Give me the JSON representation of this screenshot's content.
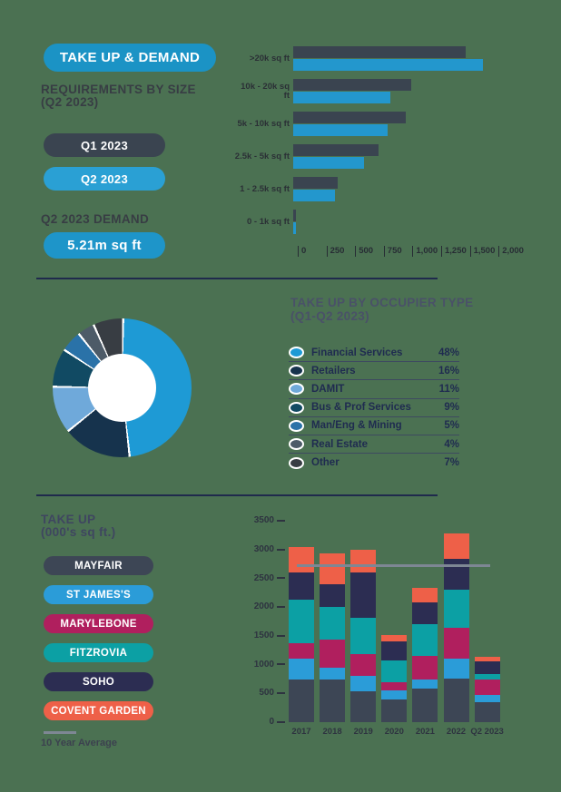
{
  "page": {
    "background": "#4b7152"
  },
  "header": {
    "title_pill": "TAKE UP & DEMAND"
  },
  "requirements": {
    "heading_line1": "REQUIREMENTS BY SIZE",
    "heading_line2": "(Q2 2023)",
    "demand_heading": "Q2 2023 DEMAND",
    "demand_value": "5.21m sq ft"
  },
  "chart_data": [
    {
      "id": "requirements_by_size",
      "type": "bar",
      "orientation": "horizontal",
      "categories": [
        ">20k sq ft",
        "10k - 20k sq ft",
        "5k - 10k sq ft",
        "2.5k - 5k sq ft",
        "1 - 2.5k sq ft",
        "0 - 1k sq ft"
      ],
      "series": [
        {
          "name": "Q1 2023",
          "color": "#3a4450",
          "values": [
            1500,
            1030,
            980,
            740,
            390,
            20
          ]
        },
        {
          "name": "Q2 2023",
          "color": "#2397cd",
          "values": [
            1650,
            845,
            820,
            620,
            360,
            25
          ]
        }
      ],
      "x_ticks": [
        "0",
        "250",
        "500",
        "750",
        "1,000",
        "1,250",
        "1,500",
        "2,000"
      ],
      "grid": false,
      "legend_position": "left"
    },
    {
      "id": "take_up_by_occupier_type",
      "type": "pie",
      "title": "TAKE UP BY OCCUPIER TYPE",
      "subtitle": "(Q1-Q2 2023)",
      "donut": true,
      "segments": [
        {
          "label": "Financial Services",
          "pct": 48,
          "color": "#1e9ad5"
        },
        {
          "label": "Retailers",
          "pct": 16,
          "color": "#16334d"
        },
        {
          "label": "DAMIT",
          "pct": 11,
          "color": "#6fa9da"
        },
        {
          "label": "Bus & Prof Services",
          "pct": 9,
          "color": "#114a63"
        },
        {
          "label": "Man/Eng & Mining",
          "pct": 5,
          "color": "#2a72a8"
        },
        {
          "label": "Real Estate",
          "pct": 4,
          "color": "#4d5b68"
        },
        {
          "label": "Other",
          "pct": 7,
          "color": "#383d43"
        }
      ],
      "legend_position": "right"
    },
    {
      "id": "take_up_by_district",
      "type": "bar",
      "stacked": true,
      "title": "TAKE UP",
      "subtitle": "(000's sq ft.)",
      "categories": [
        "2017",
        "2018",
        "2019",
        "2020",
        "2021",
        "2022",
        "Q2 2023"
      ],
      "series": [
        {
          "name": "MAYFAIR",
          "color": "#3d4655",
          "values": [
            740,
            750,
            540,
            390,
            580,
            760,
            350
          ]
        },
        {
          "name": "ST JAMES'S",
          "color": "#2b9cd8",
          "values": [
            365,
            200,
            270,
            160,
            170,
            350,
            120
          ]
        },
        {
          "name": "MARYLEBONE",
          "color": "#b01f5e",
          "values": [
            270,
            480,
            370,
            150,
            410,
            530,
            270
          ]
        },
        {
          "name": "FITZROVIA",
          "color": "#0ca0a4",
          "values": [
            760,
            570,
            630,
            380,
            550,
            670,
            95
          ]
        },
        {
          "name": "SOHO",
          "color": "#2c2d52",
          "values": [
            470,
            400,
            790,
            320,
            380,
            540,
            230
          ]
        },
        {
          "name": "COVENT GARDEN",
          "color": "#ee6048",
          "values": [
            450,
            540,
            400,
            120,
            250,
            440,
            70
          ]
        }
      ],
      "y_ticks": [
        0,
        500,
        1000,
        1500,
        2000,
        2500,
        3000,
        3500
      ],
      "ylim": [
        0,
        3500
      ],
      "average_line": {
        "label": "10 Year Average",
        "value": 2720,
        "color": "#7e8794"
      },
      "legend_position": "left"
    }
  ]
}
